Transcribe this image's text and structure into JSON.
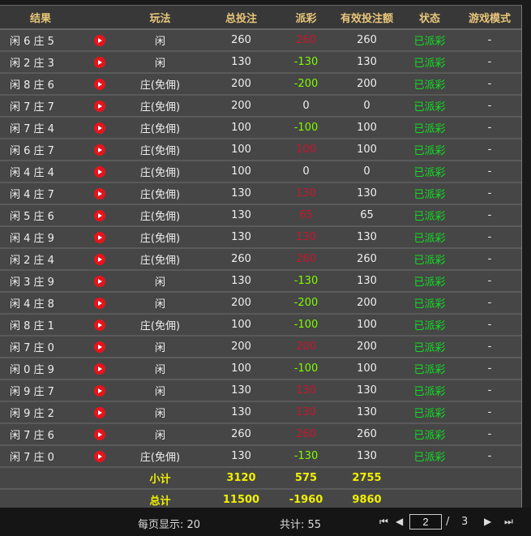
{
  "headers": [
    "结果",
    "",
    "玩法",
    "总投注",
    "派彩",
    "有效投注额",
    "状态",
    "游戏模式"
  ],
  "colors": {
    "header": "#e8c77a",
    "payout_positive": "#c8162c",
    "payout_negative": "#7cfc00",
    "status": "#11dd22",
    "summary": "#f0f000",
    "play_icon": "#e6141b"
  },
  "rows": [
    [
      "闲 6 庄 5",
      "闲",
      "260",
      "260",
      "260",
      "已派彩",
      "-"
    ],
    [
      "闲 2 庄 3",
      "闲",
      "130",
      "-130",
      "130",
      "已派彩",
      "-"
    ],
    [
      "闲 8 庄 6",
      "庄(免佣)",
      "200",
      "-200",
      "200",
      "已派彩",
      "-"
    ],
    [
      "闲 7 庄 7",
      "庄(免佣)",
      "200",
      "0",
      "0",
      "已派彩",
      "-"
    ],
    [
      "闲 7 庄 4",
      "庄(免佣)",
      "100",
      "-100",
      "100",
      "已派彩",
      "-"
    ],
    [
      "闲 6 庄 7",
      "庄(免佣)",
      "100",
      "100",
      "100",
      "已派彩",
      "-"
    ],
    [
      "闲 4 庄 4",
      "庄(免佣)",
      "100",
      "0",
      "0",
      "已派彩",
      "-"
    ],
    [
      "闲 4 庄 7",
      "庄(免佣)",
      "130",
      "130",
      "130",
      "已派彩",
      "-"
    ],
    [
      "闲 5 庄 6",
      "庄(免佣)",
      "130",
      "65",
      "65",
      "已派彩",
      "-"
    ],
    [
      "闲 4 庄 9",
      "庄(免佣)",
      "130",
      "130",
      "130",
      "已派彩",
      "-"
    ],
    [
      "闲 2 庄 4",
      "庄(免佣)",
      "260",
      "260",
      "260",
      "已派彩",
      "-"
    ],
    [
      "闲 3 庄 9",
      "闲",
      "130",
      "-130",
      "130",
      "已派彩",
      "-"
    ],
    [
      "闲 4 庄 8",
      "闲",
      "200",
      "-200",
      "200",
      "已派彩",
      "-"
    ],
    [
      "闲 8 庄 1",
      "庄(免佣)",
      "100",
      "-100",
      "100",
      "已派彩",
      "-"
    ],
    [
      "闲 7 庄 0",
      "闲",
      "200",
      "200",
      "200",
      "已派彩",
      "-"
    ],
    [
      "闲 0 庄 9",
      "闲",
      "100",
      "-100",
      "100",
      "已派彩",
      "-"
    ],
    [
      "闲 9 庄 7",
      "闲",
      "130",
      "130",
      "130",
      "已派彩",
      "-"
    ],
    [
      "闲 9 庄 2",
      "闲",
      "130",
      "130",
      "130",
      "已派彩",
      "-"
    ],
    [
      "闲 7 庄 6",
      "闲",
      "260",
      "260",
      "260",
      "已派彩",
      "-"
    ],
    [
      "闲 7 庄 0",
      "庄(免佣)",
      "130",
      "-130",
      "130",
      "已派彩",
      "-"
    ]
  ],
  "subtotal": {
    "label": "小计",
    "bet": "3120",
    "payout": "575",
    "valid": "2755"
  },
  "total": {
    "label": "总计",
    "bet": "11500",
    "payout": "-1960",
    "valid": "9860"
  },
  "footer": {
    "per_page": "每页显示: 20",
    "count": "共计: 55",
    "page": "2",
    "sep": "/",
    "pages": "3"
  }
}
